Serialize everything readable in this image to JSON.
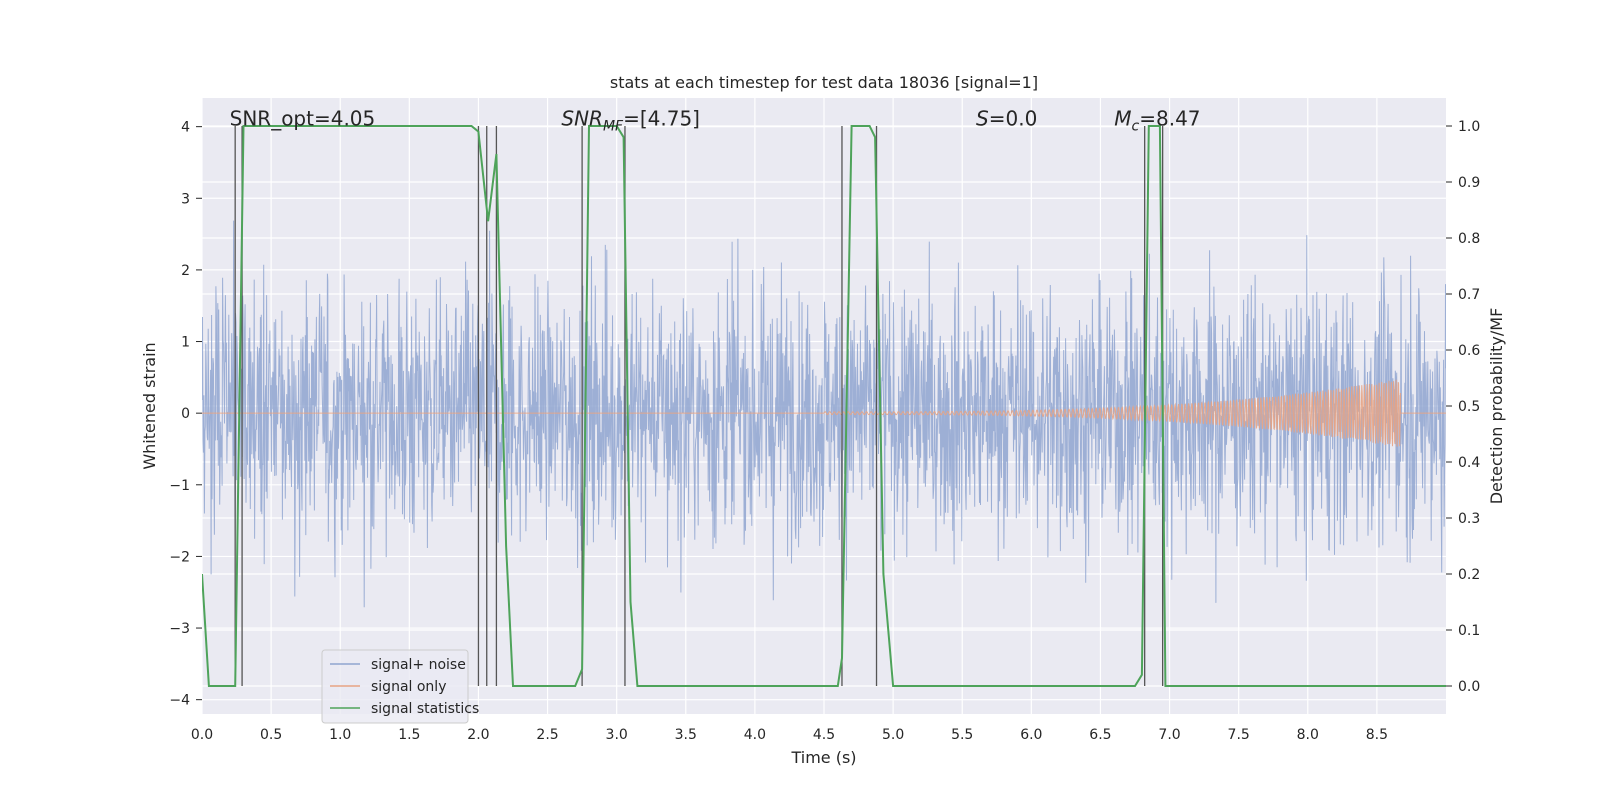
{
  "chart_data": {
    "type": "line",
    "title": "stats at each timestep for test data 18036 [signal=1]",
    "xlabel": "Time (s)",
    "ylabel_left": "Whitened strain",
    "ylabel_right": "Detection probability/MF",
    "xlim": [
      0.0,
      9.0
    ],
    "ylim_left": [
      -4.2,
      4.4
    ],
    "ylim_right": [
      -0.05,
      1.05
    ],
    "x_ticks": [
      "0.0",
      "0.5",
      "1.0",
      "1.5",
      "2.0",
      "2.5",
      "3.0",
      "3.5",
      "4.0",
      "4.5",
      "5.0",
      "5.5",
      "6.0",
      "6.5",
      "7.0",
      "7.5",
      "8.0",
      "8.5"
    ],
    "x_tick_values": [
      0.0,
      0.5,
      1.0,
      1.5,
      2.0,
      2.5,
      3.0,
      3.5,
      4.0,
      4.5,
      5.0,
      5.5,
      6.0,
      6.5,
      7.0,
      7.5,
      8.0,
      8.5
    ],
    "y_ticks_left": [
      "−4",
      "−3",
      "−2",
      "−1",
      "0",
      "1",
      "2",
      "3",
      "4"
    ],
    "y_tick_values_left": [
      -4,
      -3,
      -2,
      -1,
      0,
      1,
      2,
      3,
      4
    ],
    "y_ticks_right": [
      "0.0",
      "0.1",
      "0.2",
      "0.3",
      "0.4",
      "0.5",
      "0.6",
      "0.7",
      "0.8",
      "0.9",
      "1.0"
    ],
    "y_tick_values_right": [
      0.0,
      0.1,
      0.2,
      0.3,
      0.4,
      0.5,
      0.6,
      0.7,
      0.8,
      0.9,
      1.0
    ],
    "grid": true,
    "legend_placement": "lower-left",
    "annotations": [
      {
        "label": "SNR_opt=4.05",
        "x": 0.2,
        "y": 4.0
      },
      {
        "label": "SNR_MF=[4.75]",
        "x": 2.6,
        "y": 4.0
      },
      {
        "label": "S=0.0",
        "x": 5.6,
        "y": 4.0
      },
      {
        "label": "M_c=8.47",
        "x": 6.6,
        "y": 4.0
      }
    ],
    "series": [
      {
        "name": "signal+ noise",
        "color": "#8fa5d0",
        "kind": "noisy strain, whitened",
        "amplitude_envelope": [
          -3.6,
          3.5
        ]
      },
      {
        "name": "signal only",
        "color": "#e8a383",
        "kind": "chirp",
        "chirp": {
          "start": 4.5,
          "end": 8.67,
          "amp_start": 0.02,
          "amp_end": 0.48
        }
      },
      {
        "name": "signal statistics",
        "color": "#4ea35a",
        "axis": "right",
        "x": [
          0.0,
          0.05,
          0.2,
          0.24,
          0.3,
          0.33,
          1.95,
          2.0,
          2.07,
          2.13,
          2.2,
          2.25,
          2.7,
          2.75,
          2.8,
          2.83,
          3.0,
          3.05,
          3.1,
          3.15,
          4.6,
          4.63,
          4.7,
          4.83,
          4.87,
          4.93,
          5.0,
          6.75,
          6.8,
          6.85,
          6.93,
          6.97,
          9.0
        ],
        "values": [
          0.2,
          0.0,
          0.0,
          0.0,
          1.0,
          1.0,
          1.0,
          0.99,
          0.83,
          0.95,
          0.25,
          0.0,
          0.0,
          0.03,
          1.0,
          1.0,
          1.0,
          0.98,
          0.15,
          0.0,
          0.0,
          0.05,
          1.0,
          1.0,
          0.98,
          0.2,
          0.0,
          0.0,
          0.02,
          1.0,
          1.0,
          0.0,
          0.0
        ]
      }
    ],
    "vertical_lines": [
      0.24,
      0.29,
      2.0,
      2.06,
      2.13,
      2.75,
      3.06,
      4.63,
      4.88,
      6.82,
      6.95
    ]
  }
}
